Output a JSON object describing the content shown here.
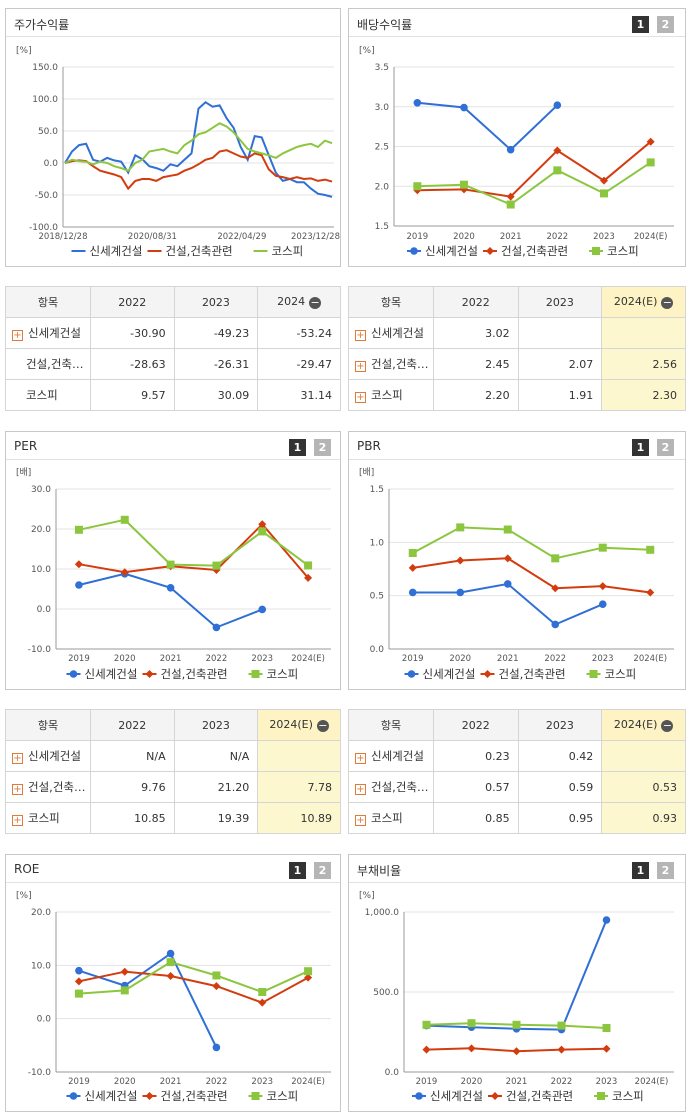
{
  "colors": {
    "s1": "#2f6fd6",
    "s2": "#d23c0e",
    "s3": "#8cc63f"
  },
  "series_names": [
    "신세계건설",
    "건설,건축관련",
    "코스피"
  ],
  "pager": [
    "1",
    "2"
  ],
  "panels": {
    "stock": {
      "title": "주가수익률"
    },
    "dividend": {
      "title": "배당수익률"
    },
    "per": {
      "title": "PER"
    },
    "pbr": {
      "title": "PBR"
    },
    "roe": {
      "title": "ROE"
    },
    "debt": {
      "title": "부채비율"
    }
  },
  "tables": {
    "stock": {
      "head": [
        "항목",
        "2022",
        "2023",
        "2024"
      ],
      "rows": [
        {
          "name": "신세계건설",
          "plus": true,
          "vals": [
            "-30.90",
            "-49.23",
            "-53.24"
          ]
        },
        {
          "name": "건설,건축…",
          "plus": false,
          "vals": [
            "-28.63",
            "-26.31",
            "-29.47"
          ]
        },
        {
          "name": "코스피",
          "plus": false,
          "vals": [
            "9.57",
            "30.09",
            "31.14"
          ]
        }
      ]
    },
    "dividend": {
      "head": [
        "항목",
        "2022",
        "2023",
        "2024(E)"
      ],
      "rows": [
        {
          "name": "신세계건설",
          "plus": true,
          "vals": [
            "3.02",
            "",
            ""
          ]
        },
        {
          "name": "건설,건축…",
          "plus": true,
          "vals": [
            "2.45",
            "2.07",
            "2.56"
          ]
        },
        {
          "name": "코스피",
          "plus": true,
          "vals": [
            "2.20",
            "1.91",
            "2.30"
          ]
        }
      ]
    },
    "per": {
      "head": [
        "항목",
        "2022",
        "2023",
        "2024(E)"
      ],
      "rows": [
        {
          "name": "신세계건설",
          "plus": true,
          "vals": [
            "N/A",
            "N/A",
            ""
          ]
        },
        {
          "name": "건설,건축…",
          "plus": true,
          "vals": [
            "9.76",
            "21.20",
            "7.78"
          ]
        },
        {
          "name": "코스피",
          "plus": true,
          "vals": [
            "10.85",
            "19.39",
            "10.89"
          ]
        }
      ]
    },
    "pbr": {
      "head": [
        "항목",
        "2022",
        "2023",
        "2024(E)"
      ],
      "rows": [
        {
          "name": "신세계건설",
          "plus": true,
          "vals": [
            "0.23",
            "0.42",
            ""
          ]
        },
        {
          "name": "건설,건축…",
          "plus": true,
          "vals": [
            "0.57",
            "0.59",
            "0.53"
          ]
        },
        {
          "name": "코스피",
          "plus": true,
          "vals": [
            "0.85",
            "0.95",
            "0.93"
          ]
        }
      ]
    }
  },
  "chart_data": [
    {
      "id": "stock",
      "type": "line",
      "unit": "[%]",
      "ylim": [
        -100,
        150
      ],
      "yticks": [
        "150.0",
        "100.0",
        "50.0",
        "0.0",
        "-50.0",
        "-100.0"
      ],
      "xticks": [
        "2018/12/28",
        "2020/08/31",
        "2022/04/29",
        "2023/12/28"
      ],
      "series": [
        {
          "name": "신세계건설",
          "values": [
            0,
            18,
            28,
            30,
            5,
            2,
            8,
            4,
            2,
            -15,
            12,
            6,
            -5,
            -8,
            -12,
            -2,
            -5,
            5,
            15,
            85,
            95,
            88,
            90,
            70,
            55,
            25,
            5,
            42,
            40,
            12,
            -15,
            -28,
            -25,
            -30,
            -30,
            -40,
            -48,
            -50,
            -53
          ]
        },
        {
          "name": "건설,건축관련",
          "values": [
            0,
            3,
            4,
            3,
            -5,
            -12,
            -15,
            -18,
            -22,
            -40,
            -28,
            -25,
            -25,
            -28,
            -22,
            -20,
            -18,
            -12,
            -8,
            -2,
            5,
            8,
            18,
            20,
            15,
            10,
            8,
            15,
            12,
            -10,
            -20,
            -22,
            -25,
            -22,
            -25,
            -24,
            -28,
            -26,
            -29
          ]
        },
        {
          "name": "코스피",
          "values": [
            0,
            5,
            3,
            2,
            -2,
            2,
            0,
            -5,
            -8,
            -12,
            0,
            5,
            18,
            20,
            22,
            18,
            15,
            28,
            35,
            45,
            48,
            55,
            62,
            57,
            48,
            35,
            22,
            18,
            15,
            12,
            8,
            15,
            20,
            25,
            28,
            30,
            25,
            35,
            31
          ]
        }
      ]
    },
    {
      "id": "dividend",
      "type": "line",
      "unit": "[%]",
      "ylim": [
        1.5,
        3.5
      ],
      "yticks": [
        "3.5",
        "3.0",
        "2.5",
        "2.0",
        "1.5"
      ],
      "categories": [
        "2019",
        "2020",
        "2021",
        "2022",
        "2023",
        "2024(E)"
      ],
      "series": [
        {
          "name": "신세계건설",
          "values": [
            3.05,
            2.99,
            2.46,
            3.02,
            null,
            null
          ]
        },
        {
          "name": "건설,건축관련",
          "values": [
            1.95,
            1.96,
            1.87,
            2.45,
            2.07,
            2.56
          ]
        },
        {
          "name": "코스피",
          "values": [
            2.0,
            2.02,
            1.77,
            2.2,
            1.91,
            2.3
          ]
        }
      ]
    },
    {
      "id": "per",
      "type": "line",
      "unit": "[배]",
      "ylim": [
        -10,
        30
      ],
      "yticks": [
        "30.0",
        "20.0",
        "10.0",
        "0.0",
        "-10.0"
      ],
      "categories": [
        "2019",
        "2020",
        "2021",
        "2022",
        "2023",
        "2024(E)"
      ],
      "series": [
        {
          "name": "신세계건설",
          "values": [
            6.0,
            8.8,
            5.3,
            -4.6,
            -0.1,
            null
          ]
        },
        {
          "name": "건설,건축관련",
          "values": [
            11.2,
            9.2,
            10.7,
            9.76,
            21.2,
            7.78
          ]
        },
        {
          "name": "코스피",
          "values": [
            19.8,
            22.3,
            11.1,
            10.85,
            19.39,
            10.89
          ]
        }
      ]
    },
    {
      "id": "pbr",
      "type": "line",
      "unit": "[배]",
      "ylim": [
        0,
        1.5
      ],
      "yticks": [
        "1.5",
        "1.0",
        "0.5",
        "0.0"
      ],
      "categories": [
        "2019",
        "2020",
        "2021",
        "2022",
        "2023",
        "2024(E)"
      ],
      "series": [
        {
          "name": "신세계건설",
          "values": [
            0.53,
            0.53,
            0.61,
            0.23,
            0.42,
            null
          ]
        },
        {
          "name": "건설,건축관련",
          "values": [
            0.76,
            0.83,
            0.85,
            0.57,
            0.59,
            0.53
          ]
        },
        {
          "name": "코스피",
          "values": [
            0.9,
            1.14,
            1.12,
            0.85,
            0.95,
            0.93
          ]
        }
      ]
    },
    {
      "id": "roe",
      "type": "line",
      "unit": "[%]",
      "ylim": [
        -10,
        20
      ],
      "yticks": [
        "20.0",
        "10.0",
        "0.0",
        "-10.0"
      ],
      "categories": [
        "2019",
        "2020",
        "2021",
        "2022",
        "2023",
        "2024(E)"
      ],
      "series": [
        {
          "name": "신세계건설",
          "values": [
            9.0,
            6.2,
            12.2,
            -5.4,
            null,
            null
          ]
        },
        {
          "name": "건설,건축관련",
          "values": [
            7.0,
            8.8,
            8.0,
            6.1,
            3.0,
            7.7
          ]
        },
        {
          "name": "코스피",
          "values": [
            4.7,
            5.3,
            10.6,
            8.1,
            5.0,
            8.9
          ]
        }
      ]
    },
    {
      "id": "debt",
      "type": "line",
      "unit": "[%]",
      "ylim": [
        0,
        1000
      ],
      "yticks": [
        "1,000.0",
        "500.0",
        "0.0"
      ],
      "categories": [
        "2019",
        "2020",
        "2021",
        "2022",
        "2023",
        "2024(E)"
      ],
      "series": [
        {
          "name": "신세계건설",
          "values": [
            290,
            280,
            270,
            265,
            950,
            null
          ]
        },
        {
          "name": "건설,건축관련",
          "values": [
            140,
            148,
            130,
            140,
            145,
            null
          ]
        },
        {
          "name": "코스피",
          "values": [
            295,
            305,
            295,
            290,
            275,
            null
          ]
        }
      ]
    }
  ]
}
